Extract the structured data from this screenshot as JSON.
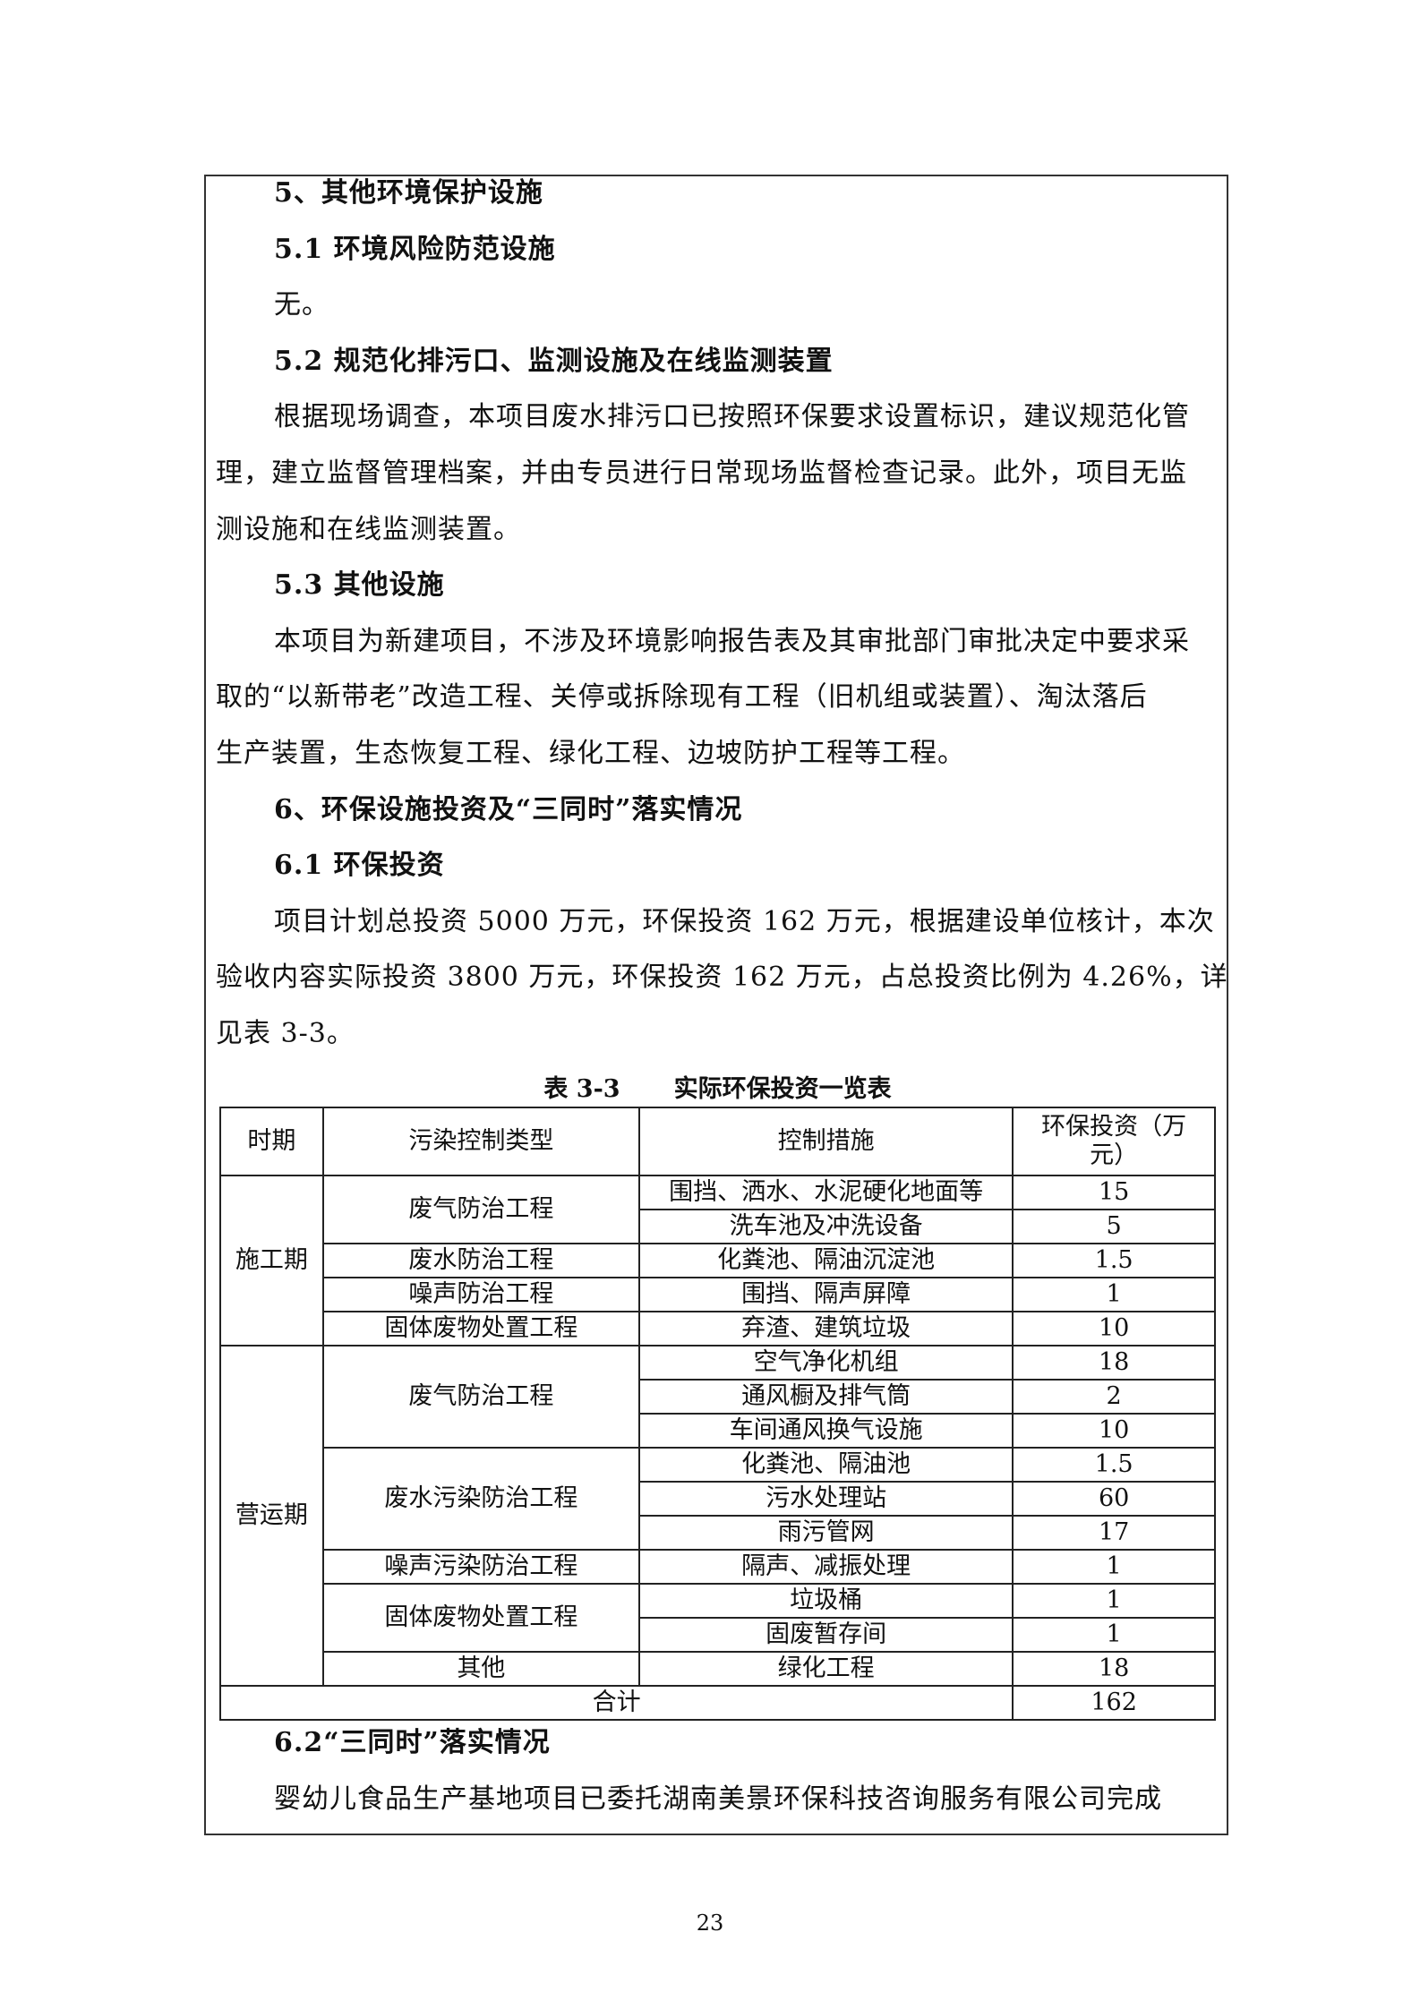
{
  "lines": [
    {
      "text": "5、其他环境保护设施",
      "style": "heading"
    },
    {
      "text": "5.1 环境风险防范设施",
      "style": "heading"
    },
    {
      "text": "无。",
      "style": "indent"
    },
    {
      "text": "5.2  规范化排污口、监测设施及在线监测装置",
      "style": "heading"
    },
    {
      "text": "根据现场调查，本项目废水排污口已按照环保要求设置标识，建议规范化管",
      "style": "indent"
    },
    {
      "text": "理，建立监督管理档案，并由专员进行日常现场监督检查记录。此外，项目无监",
      "style": "body"
    },
    {
      "text": "测设施和在线监测装置。",
      "style": "body"
    },
    {
      "text": "5.3 其他设施",
      "style": "heading"
    },
    {
      "text": "本项目为新建项目，不涉及环境影响报告表及其审批部门审批决定中要求采",
      "style": "indent"
    },
    {
      "text": "取的“以新带老”改造工程、关停或拆除现有工程（旧机组或装置）、淘汰落后",
      "style": "body"
    },
    {
      "text": "生产装置，生态恢复工程、绿化工程、边坡防护工程等工程。",
      "style": "body"
    },
    {
      "text": "6、环保设施投资及“三同时”落实情况",
      "style": "heading"
    },
    {
      "text": "6.1 环保投资",
      "style": "heading"
    },
    {
      "text": "项目计划总投资 5000 万元，环保投资 162 万元，根据建设单位核计，本次",
      "style": "indent"
    },
    {
      "text": "验收内容实际投资 3800 万元，环保投资 162 万元，占总投资比例为 4.26%，详",
      "style": "body"
    },
    {
      "text": "见表 3-3。",
      "style": "body"
    }
  ],
  "table": {
    "caption_no": "表 3-3",
    "caption_title": "实际环保投资一览表",
    "headers": [
      "时期",
      "污染控制类型",
      "控制措施",
      "环保投资（万元）"
    ],
    "periods": [
      "施工期",
      "营运期"
    ],
    "types": [
      "废气防治工程",
      "废水防治工程",
      "噪声防治工程",
      "固体废物处置工程",
      "废气防治工程",
      "废水污染防治工程",
      "噪声污染防治工程",
      "固体废物处置工程",
      "其他"
    ],
    "rows": [
      [
        "围挡、洒水、水泥硬化地面等",
        "15"
      ],
      [
        "洗车池及冲洗设备",
        "5"
      ],
      [
        "化粪池、隔油沉淀池",
        "1.5"
      ],
      [
        "围挡、隔声屏障",
        "1"
      ],
      [
        "弃渣、建筑垃圾",
        "10"
      ],
      [
        "空气净化机组",
        "18"
      ],
      [
        "通风橱及排气筒",
        "2"
      ],
      [
        "车间通风换气设施",
        "10"
      ],
      [
        "化粪池、隔油池",
        "1.5"
      ],
      [
        "污水处理站",
        "60"
      ],
      [
        "雨污管网",
        "17"
      ],
      [
        "隔声、减振处理",
        "1"
      ],
      [
        "垃圾桶",
        "1"
      ],
      [
        "固废暂存间",
        "1"
      ],
      [
        "绿化工程",
        "18"
      ]
    ],
    "total_label": "合计",
    "total_value": "162"
  },
  "after": [
    {
      "text": "6.2“三同时”落实情况",
      "style": "heading"
    },
    {
      "text": "婴幼儿食品生产基地项目已委托湖南美景环保科技咨询服务有限公司完成",
      "style": "indent"
    }
  ],
  "page_number": "23"
}
